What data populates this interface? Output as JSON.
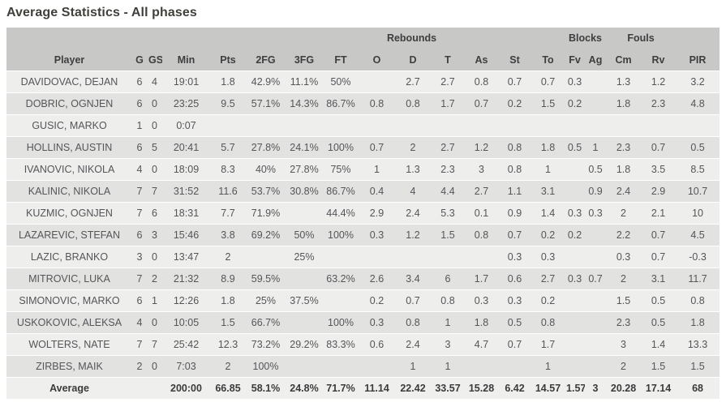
{
  "title": "Average Statistics - All phases",
  "table": {
    "group_headers": {
      "rebounds": "Rebounds",
      "blocks": "Blocks",
      "fouls": "Fouls"
    },
    "columns": [
      "Player",
      "G",
      "GS",
      "Min",
      "Pts",
      "2FG",
      "3FG",
      "FT",
      "O",
      "D",
      "T",
      "As",
      "St",
      "To",
      "Fv",
      "Ag",
      "Cm",
      "Rv",
      "PIR"
    ],
    "rows": [
      [
        "DAVIDOVAC, DEJAN",
        "6",
        "4",
        "19:01",
        "1.8",
        "42.9%",
        "11.1%",
        "50%",
        "",
        "2.7",
        "2.7",
        "0.8",
        "0.7",
        "0.7",
        "0.3",
        "",
        "1.3",
        "1.2",
        "3.2"
      ],
      [
        "DOBRIC, OGNJEN",
        "6",
        "0",
        "23:25",
        "9.5",
        "57.1%",
        "14.3%",
        "86.7%",
        "0.8",
        "0.8",
        "1.7",
        "0.7",
        "0.2",
        "1.5",
        "0.2",
        "",
        "1.8",
        "2.3",
        "4.8"
      ],
      [
        "GUSIC, MARKO",
        "1",
        "0",
        "0:07",
        "",
        "",
        "",
        "",
        "",
        "",
        "",
        "",
        "",
        "",
        "",
        "",
        "",
        "",
        ""
      ],
      [
        "HOLLINS, AUSTIN",
        "6",
        "5",
        "20:41",
        "5.7",
        "27.8%",
        "24.1%",
        "100%",
        "0.7",
        "2",
        "2.7",
        "1.2",
        "0.8",
        "1.8",
        "0.5",
        "1",
        "2.3",
        "0.7",
        "0.5"
      ],
      [
        "IVANOVIC, NIKOLA",
        "4",
        "0",
        "18:09",
        "8.3",
        "40%",
        "27.8%",
        "75%",
        "1",
        "1.3",
        "2.3",
        "3",
        "0.8",
        "1",
        "",
        "0.5",
        "1.8",
        "3.5",
        "8.5"
      ],
      [
        "KALINIC, NIKOLA",
        "7",
        "7",
        "31:52",
        "11.6",
        "53.7%",
        "30.8%",
        "86.7%",
        "0.4",
        "4",
        "4.4",
        "2.7",
        "1.1",
        "3.1",
        "",
        "0.9",
        "2.4",
        "2.9",
        "10.7"
      ],
      [
        "KUZMIC, OGNJEN",
        "7",
        "6",
        "18:31",
        "7.7",
        "71.9%",
        "",
        "44.4%",
        "2.9",
        "2.4",
        "5.3",
        "0.1",
        "0.9",
        "1.4",
        "0.3",
        "0.3",
        "2",
        "2.1",
        "10"
      ],
      [
        "LAZAREVIC, STEFAN",
        "6",
        "3",
        "15:46",
        "3.8",
        "69.2%",
        "50%",
        "100%",
        "0.3",
        "1.2",
        "1.5",
        "0.8",
        "0.7",
        "0.2",
        "0.2",
        "",
        "2.2",
        "0.7",
        "4.5"
      ],
      [
        "LAZIC, BRANKO",
        "3",
        "0",
        "13:47",
        "2",
        "",
        "25%",
        "",
        "",
        "",
        "",
        "",
        "0.3",
        "0.3",
        "",
        "",
        "0.3",
        "0.7",
        "-0.3"
      ],
      [
        "MITROVIC, LUKA",
        "7",
        "2",
        "21:32",
        "8.9",
        "59.5%",
        "",
        "63.2%",
        "2.6",
        "3.4",
        "6",
        "1.7",
        "0.6",
        "2.7",
        "0.3",
        "0.7",
        "2",
        "3.1",
        "11.7"
      ],
      [
        "SIMONOVIC, MARKO",
        "6",
        "1",
        "12:26",
        "1.8",
        "25%",
        "37.5%",
        "",
        "0.2",
        "0.7",
        "0.8",
        "0.3",
        "0.3",
        "0.2",
        "",
        "",
        "1.5",
        "0.5",
        "0.8"
      ],
      [
        "USKOKOVIC, ALEKSA",
        "4",
        "0",
        "10:05",
        "1.5",
        "66.7%",
        "",
        "100%",
        "0.3",
        "0.8",
        "1",
        "1.8",
        "0.5",
        "0.8",
        "",
        "",
        "2.3",
        "0.5",
        "1.8"
      ],
      [
        "WOLTERS, NATE",
        "7",
        "7",
        "25:42",
        "12.3",
        "73.2%",
        "29.2%",
        "83.3%",
        "0.6",
        "2.4",
        "3",
        "4.7",
        "0.7",
        "1.7",
        "",
        "",
        "3",
        "1.4",
        "13.3"
      ],
      [
        "ZIRBES, MAIK",
        "2",
        "0",
        "7:03",
        "2",
        "100%",
        "",
        "",
        "",
        "1",
        "1",
        "",
        "",
        "1",
        "",
        "",
        "2",
        "1.5",
        "1.5"
      ]
    ],
    "average_row": [
      "Average",
      "",
      "",
      "200:00",
      "66.85",
      "58.1%",
      "24.8%",
      "71.7%",
      "11.14",
      "22.42",
      "33.57",
      "15.28",
      "6.42",
      "14.57",
      "1.57",
      "3",
      "20.28",
      "17.14",
      "68"
    ]
  },
  "colors": {
    "header_bg": "#c8c8c6",
    "row_light_bg": "#eeeeec",
    "row_dark_bg": "#e2e2e0",
    "average_row_bg": "#efefed",
    "text": "#55555a",
    "header_text": "#3e3e40",
    "title_text": "#403f3b"
  }
}
